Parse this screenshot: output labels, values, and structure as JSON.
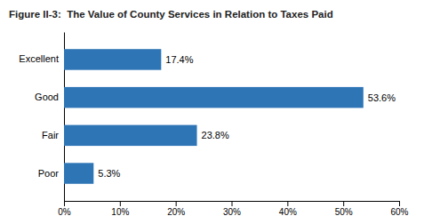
{
  "chart_data": {
    "type": "bar",
    "orientation": "horizontal",
    "title": "Figure II-3:  The Value of County Services in Relation to Taxes Paid",
    "categories": [
      "Poor",
      "Fair",
      "Good",
      "Excellent"
    ],
    "values": [
      5.3,
      23.8,
      53.6,
      17.4
    ],
    "value_labels": [
      "5.3%",
      "23.8%",
      "53.6%",
      "17.4%"
    ],
    "data_labels": true,
    "color": "#2E75B6",
    "xlim": [
      0,
      60
    ],
    "xticks": [
      {
        "value": 0,
        "label": "0%"
      },
      {
        "value": 10,
        "label": "10%"
      },
      {
        "value": 20,
        "label": "20%"
      },
      {
        "value": 30,
        "label": "30%"
      },
      {
        "value": 40,
        "label": "40%"
      },
      {
        "value": 50,
        "label": "50%"
      },
      {
        "value": 60,
        "label": "60%"
      }
    ],
    "grid": false
  }
}
